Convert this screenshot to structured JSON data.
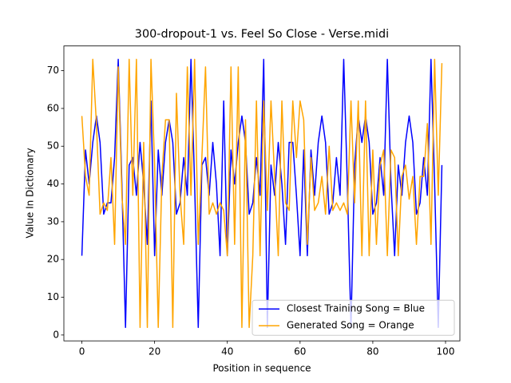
{
  "chart_data": {
    "type": "line",
    "title": "300-dropout-1 vs. Feel So Close - Verse.midi",
    "x_label": "Position in sequence",
    "y_label": "Value In Dictionary",
    "x": [
      0,
      1,
      2,
      3,
      4,
      5,
      6,
      7,
      8,
      9,
      10,
      11,
      12,
      13,
      14,
      15,
      16,
      17,
      18,
      19,
      20,
      21,
      22,
      23,
      24,
      25,
      26,
      27,
      28,
      29,
      30,
      31,
      32,
      33,
      34,
      35,
      36,
      37,
      38,
      39,
      40,
      41,
      42,
      43,
      44,
      45,
      46,
      47,
      48,
      49,
      50,
      51,
      52,
      53,
      54,
      55,
      56,
      57,
      58,
      59,
      60,
      61,
      62,
      63,
      64,
      65,
      66,
      67,
      68,
      69,
      70,
      71,
      72,
      73,
      74,
      75,
      76,
      77,
      78,
      79,
      80,
      81,
      82,
      83,
      84,
      85,
      86,
      87,
      88,
      89,
      90,
      91,
      92,
      93,
      94,
      95,
      96,
      97,
      98,
      99
    ],
    "series": [
      {
        "name": "Closest Training Song = Blue",
        "color": "#0000ff",
        "values": [
          21,
          49,
          40,
          51,
          58,
          51,
          32,
          35,
          35,
          47,
          73,
          40,
          2,
          45,
          47,
          37,
          51,
          40,
          24,
          62,
          21,
          49,
          37,
          51,
          57,
          51,
          32,
          35,
          47,
          37,
          73,
          40,
          2,
          45,
          47,
          37,
          51,
          40,
          21,
          62,
          21,
          49,
          40,
          51,
          58,
          51,
          32,
          35,
          47,
          37,
          73,
          2,
          45,
          37,
          51,
          40,
          24,
          51,
          51,
          37,
          21,
          49,
          21,
          49,
          37,
          51,
          58,
          51,
          32,
          35,
          47,
          37,
          73,
          40,
          2,
          45,
          58,
          51,
          58,
          51,
          32,
          35,
          47,
          37,
          73,
          40,
          21,
          45,
          37,
          51,
          58,
          51,
          32,
          35,
          47,
          37,
          73,
          40,
          2,
          45
        ]
      },
      {
        "name": "Generated Song = Orange",
        "color": "#ffa500",
        "values": [
          58,
          42,
          37,
          73,
          56,
          32,
          35,
          33,
          47,
          24,
          71,
          37,
          24,
          73,
          37,
          73,
          2,
          51,
          2,
          73,
          45,
          2,
          42,
          57,
          57,
          2,
          64,
          37,
          24,
          71,
          37,
          73,
          24,
          47,
          71,
          32,
          35,
          32,
          35,
          33,
          21,
          71,
          24,
          71,
          2,
          57,
          2,
          21,
          62,
          21,
          62,
          33,
          62,
          42,
          21,
          62,
          35,
          33,
          62,
          47,
          62,
          57,
          24,
          47,
          33,
          35,
          42,
          32,
          50,
          33,
          35,
          33,
          35,
          32,
          62,
          35,
          62,
          21,
          62,
          21,
          49,
          24,
          45,
          49,
          21,
          49,
          47,
          21,
          42,
          45,
          36,
          42,
          24,
          42,
          42,
          56,
          24,
          73,
          37,
          72
        ]
      }
    ],
    "xlim": [
      -4.95,
      103.95
    ],
    "ylim": [
      -1.55,
      76.55
    ],
    "xticks": [
      0,
      20,
      40,
      60,
      80,
      100
    ],
    "yticks": [
      0,
      10,
      20,
      30,
      40,
      50,
      60,
      70
    ],
    "legend": "lower right"
  }
}
